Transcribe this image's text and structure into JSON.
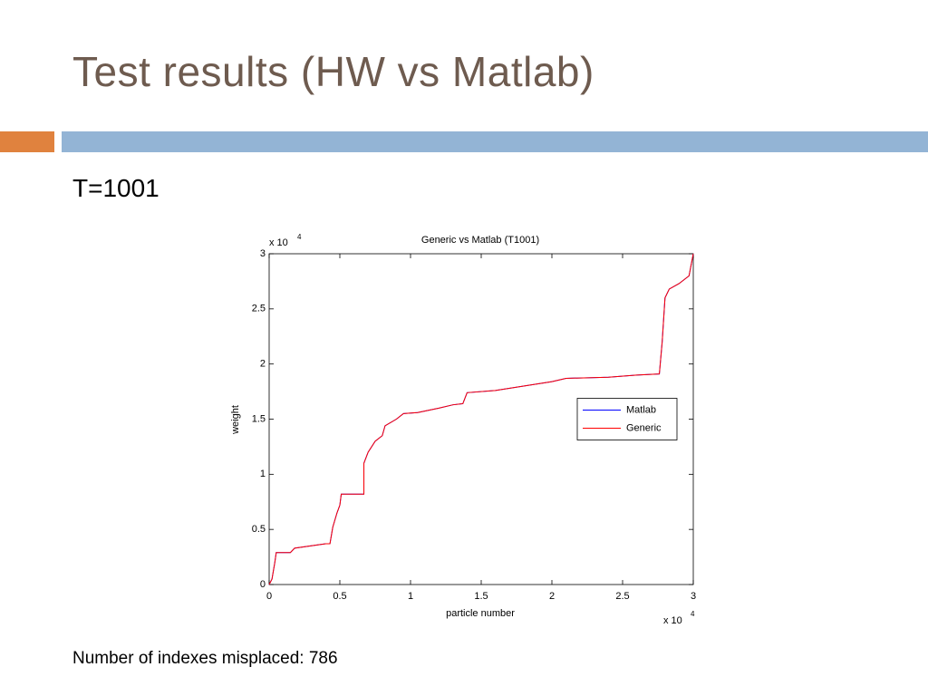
{
  "slide": {
    "title": "Test results (HW vs Matlab)",
    "subtitle": "T=1001",
    "note": "Number of indexes misplaced: 786"
  },
  "chart_data": {
    "type": "line",
    "title": "Generic vs Matlab (T1001)",
    "x_label": "particle number",
    "y_label": "weight",
    "x_scale_label": {
      "base": "x 10",
      "exponent": "4"
    },
    "y_scale_label": {
      "base": "x 10",
      "exponent": "4"
    },
    "x": [
      0,
      0.02,
      0.04,
      0.05,
      0.15,
      0.18,
      0.4,
      0.43,
      0.45,
      0.48,
      0.5,
      0.51,
      0.67,
      0.67,
      0.7,
      0.75,
      0.8,
      0.82,
      0.9,
      0.95,
      1.05,
      1.2,
      1.3,
      1.37,
      1.4,
      1.6,
      1.8,
      2.0,
      2.1,
      2.4,
      2.6,
      2.76,
      2.78,
      2.8,
      2.83,
      2.9,
      2.97,
      3.0
    ],
    "series": [
      {
        "name": "Matlab",
        "color": "#0000ff",
        "values": [
          0,
          0.05,
          0.2,
          0.29,
          0.29,
          0.33,
          0.37,
          0.37,
          0.52,
          0.65,
          0.72,
          0.82,
          0.82,
          1.1,
          1.2,
          1.3,
          1.35,
          1.44,
          1.5,
          1.55,
          1.56,
          1.6,
          1.63,
          1.64,
          1.74,
          1.76,
          1.8,
          1.84,
          1.87,
          1.88,
          1.9,
          1.91,
          2.2,
          2.6,
          2.68,
          2.73,
          2.8,
          3.0
        ]
      },
      {
        "name": "Generic",
        "color": "#ff0000",
        "values": [
          0,
          0.05,
          0.2,
          0.29,
          0.29,
          0.33,
          0.37,
          0.37,
          0.52,
          0.65,
          0.72,
          0.82,
          0.82,
          1.1,
          1.2,
          1.3,
          1.35,
          1.44,
          1.5,
          1.55,
          1.56,
          1.6,
          1.63,
          1.64,
          1.74,
          1.76,
          1.8,
          1.84,
          1.87,
          1.88,
          1.9,
          1.91,
          2.2,
          2.6,
          2.68,
          2.73,
          2.8,
          3.0
        ]
      }
    ],
    "xlim": [
      0,
      3
    ],
    "xticks": [
      0,
      0.5,
      1,
      1.5,
      2,
      2.5,
      3
    ],
    "ylim": [
      0,
      3
    ],
    "yticks": [
      0,
      0.5,
      1,
      1.5,
      2,
      2.5,
      3
    ],
    "legend": "east"
  }
}
